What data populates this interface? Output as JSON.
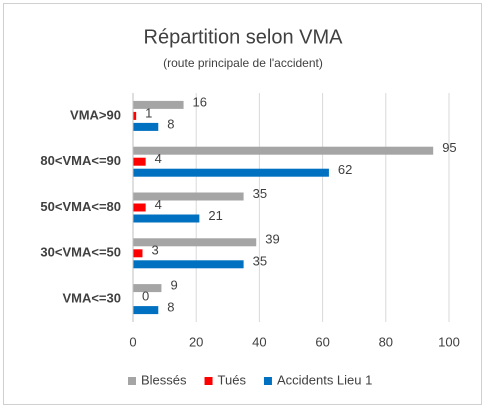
{
  "chart_data": {
    "type": "hbar",
    "title": "Répartition selon VMA",
    "subtitle": "(route principale de l'accident)",
    "categories": [
      "VMA>90",
      "80<VMA<=90",
      "50<VMA<=80",
      "30<VMA<=50",
      "VMA<=30"
    ],
    "series": [
      {
        "name": "Blessés",
        "color": "#a5a5a5",
        "values": [
          16,
          95,
          35,
          39,
          9
        ]
      },
      {
        "name": "Tués",
        "color": "#ff0000",
        "values": [
          1,
          4,
          4,
          3,
          0
        ]
      },
      {
        "name": "Accidents Lieu 1",
        "color": "#0070c0",
        "values": [
          8,
          62,
          21,
          35,
          8
        ]
      }
    ],
    "xlim": [
      0,
      100
    ],
    "xticks": [
      0,
      20,
      40,
      60,
      80,
      100
    ],
    "grid": true,
    "legend": "bottom"
  }
}
